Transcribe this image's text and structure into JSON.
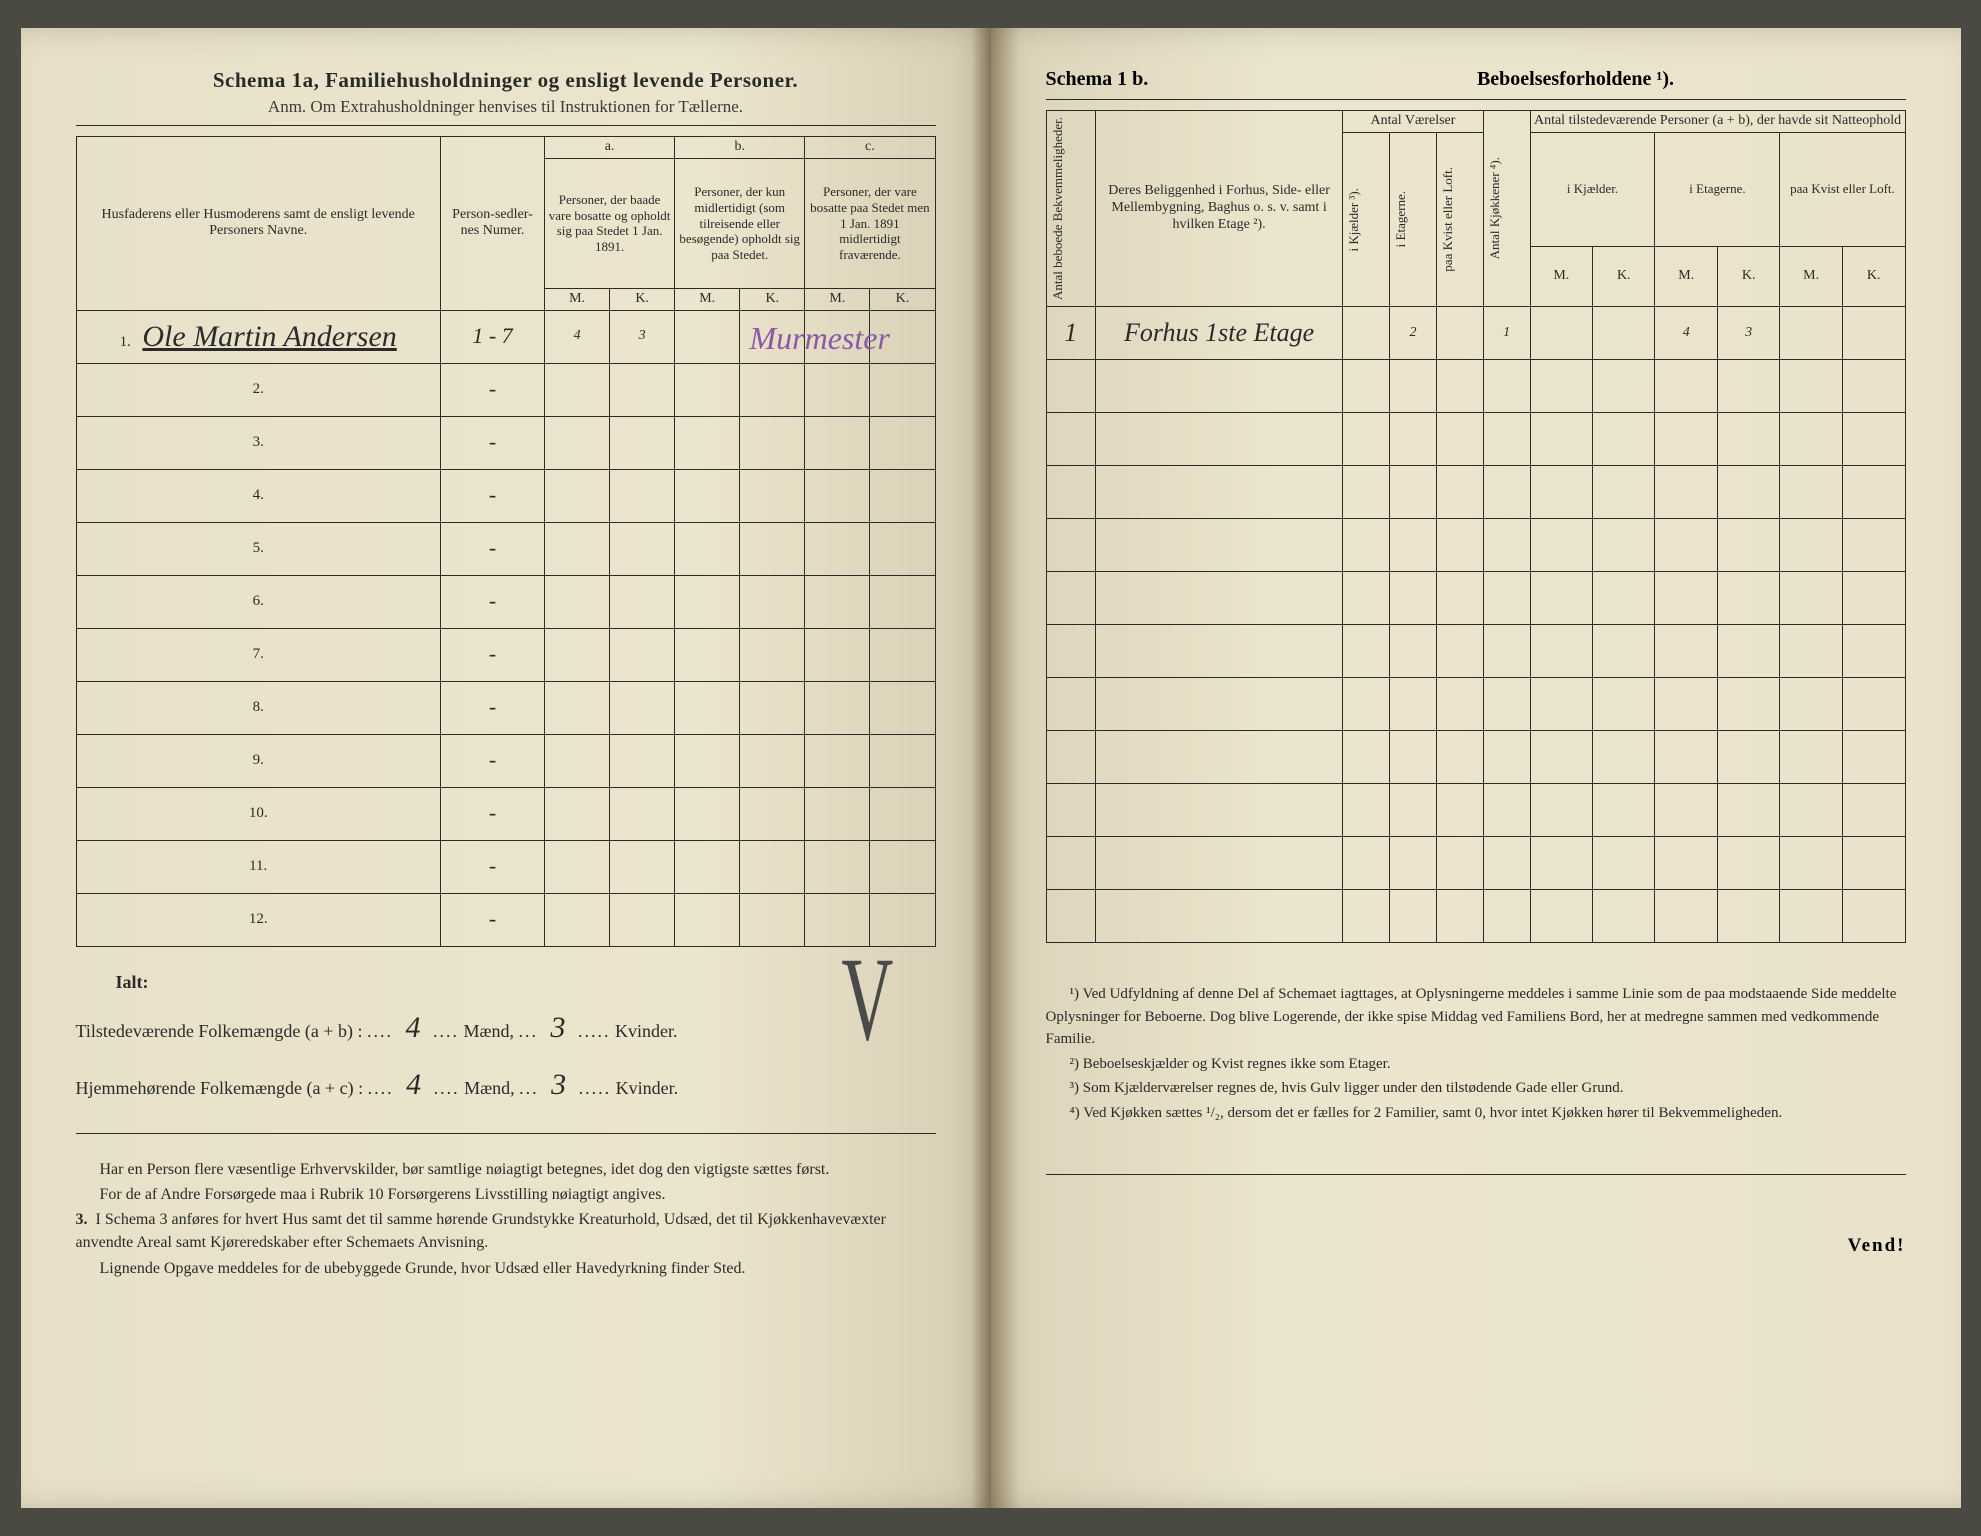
{
  "colors": {
    "paper_left": "#ece5cd",
    "paper_right": "#eae2ca",
    "ink": "#2a2a28",
    "handwriting": "#2b2b2b",
    "purple_ink": "#8a5aa8",
    "background": "#4a4a42"
  },
  "left": {
    "title": "Schema 1a,  Familiehusholdninger og ensligt levende Personer.",
    "subtitle": "Anm. Om Extrahusholdninger henvises til Instruktionen for Tællerne.",
    "headers": {
      "col1": "Husfaderens eller Husmoderens samt de ensligt levende Personers Navne.",
      "col2": "Person-sedler-nes Numer.",
      "a_label": "a.",
      "a_text": "Personer, der baade vare bosatte og opholdt sig paa Stedet 1 Jan. 1891.",
      "b_label": "b.",
      "b_text": "Personer, der kun midlertidigt (som tilreisende eller besøgende) opholdt sig paa Stedet.",
      "c_label": "c.",
      "c_text": "Personer, der vare bosatte paa Stedet men 1 Jan. 1891 midlertidigt fraværende.",
      "M": "M.",
      "K": "K."
    },
    "rows": [
      {
        "n": "1.",
        "name": "Ole Martin Andersen",
        "numer": "1 - 7",
        "aM": "4",
        "aK": "3",
        "bM": "",
        "bK": "",
        "cM": "",
        "cK": "",
        "note": "Murmester"
      },
      {
        "n": "2.",
        "name": "",
        "numer": "-"
      },
      {
        "n": "3.",
        "name": "",
        "numer": "-"
      },
      {
        "n": "4.",
        "name": "",
        "numer": "-"
      },
      {
        "n": "5.",
        "name": "",
        "numer": "-"
      },
      {
        "n": "6.",
        "name": "",
        "numer": "-"
      },
      {
        "n": "7.",
        "name": "",
        "numer": "-"
      },
      {
        "n": "8.",
        "name": "",
        "numer": "-"
      },
      {
        "n": "9.",
        "name": "",
        "numer": "-"
      },
      {
        "n": "10.",
        "name": "",
        "numer": "-"
      },
      {
        "n": "11.",
        "name": "",
        "numer": "-"
      },
      {
        "n": "12.",
        "name": "",
        "numer": "-"
      }
    ],
    "summary": {
      "ialt": "Ialt:",
      "line1_a": "Tilstedeværende Folkemængde (a + b) :",
      "line1_m": "4",
      "line1_mid": "Mænd,",
      "line1_k": "3",
      "line1_end": "Kvinder.",
      "line2_a": "Hjemmehørende Folkemængde (a + c) :",
      "line2_m": "4",
      "line2_mid": "Mænd,",
      "line2_k": "3",
      "line2_end": "Kvinder."
    },
    "body": {
      "p1": "Har en Person flere væsentlige Erhvervskilder, bør samtlige nøiagtigt betegnes, idet dog den vigtigste sættes først.",
      "p2": "For de af Andre Forsørgede maa i Rubrik 10 Forsørgerens Livsstilling nøiagtigt angives.",
      "p3num": "3.",
      "p3": "I Schema 3 anføres for hvert Hus samt det til samme hørende Grundstykke Kreaturhold, Udsæd, det til Kjøkkenhavevæxter anvendte Areal samt Kjøreredskaber efter Schemaets Anvisning.",
      "p4": "Lignende Opgave meddeles for de ubebyggede Grunde, hvor Udsæd eller Havedyrkning finder Sted."
    },
    "checkmark": "V"
  },
  "right": {
    "title_a": "Schema 1 b.",
    "title_b": "Beboelsesforholdene ¹).",
    "headers": {
      "col1": "Antal beboede Bekvemmeligheder.",
      "col2": "Deres Beliggenhed i Forhus, Side- eller Mellembygning, Baghus o. s. v. samt i hvilken Etage ²).",
      "vg_label": "Antal Værelser",
      "v1": "i Kjælder ³).",
      "v2": "i Etagerne.",
      "v3": "paa Kvist eller Loft.",
      "kj": "Antal Kjøkkener ⁴).",
      "pg_label": "Antal tilstedeværende Personer (a + b), der havde sit Natteophold",
      "p1": "i Kjælder.",
      "p2": "i Etagerne.",
      "p3": "paa Kvist eller Loft.",
      "M": "M.",
      "K": "K."
    },
    "rows": [
      {
        "n": "1",
        "loc": "Forhus 1ste Etage",
        "v1": "",
        "v2": "2",
        "v3": "",
        "kj": "1",
        "kM": "",
        "kK": "",
        "eM": "4",
        "eK": "3",
        "lM": "",
        "lK": ""
      },
      {},
      {},
      {},
      {},
      {},
      {},
      {},
      {},
      {},
      {},
      {}
    ],
    "footnotes": {
      "f1": "¹) Ved Udfyldning af denne Del af Schemaet iagttages, at Oplysningerne meddeles i samme Linie som de paa modstaaende Side meddelte Oplysninger for Beboerne. Dog blive Logerende, der ikke spise Middag ved Familiens Bord, her at medregne sammen med vedkommende Familie.",
      "f2": "²) Beboelseskjælder og Kvist regnes ikke som Etager.",
      "f3": "³) Som Kjælderværelser regnes de, hvis Gulv ligger under den tilstødende Gade eller Grund.",
      "f4": "⁴) Ved Kjøkken sættes ¹/₂, dersom det er fælles for 2 Familier, samt 0, hvor intet Kjøkken hører til Bekvemmeligheden."
    },
    "vend": "Vend!"
  }
}
